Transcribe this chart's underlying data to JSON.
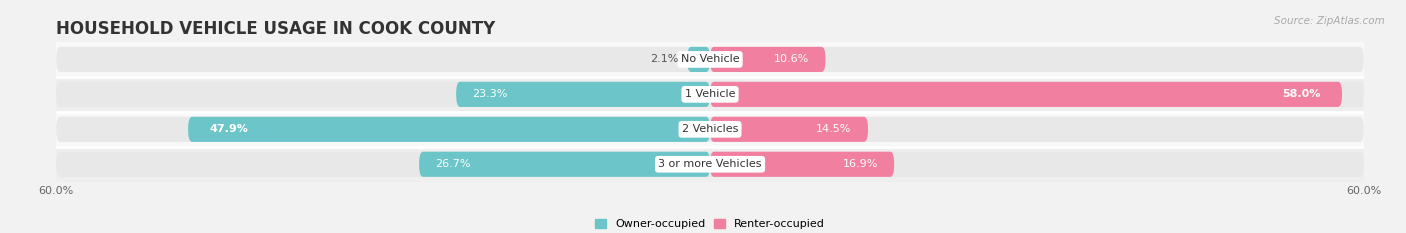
{
  "title": "HOUSEHOLD VEHICLE USAGE IN COOK COUNTY",
  "source": "Source: ZipAtlas.com",
  "categories": [
    "No Vehicle",
    "1 Vehicle",
    "2 Vehicles",
    "3 or more Vehicles"
  ],
  "owner_values": [
    2.1,
    23.3,
    47.9,
    26.7
  ],
  "renter_values": [
    10.6,
    58.0,
    14.5,
    16.9
  ],
  "owner_color": "#6cc5c8",
  "renter_color": "#f07fa0",
  "background_color": "#f2f2f2",
  "bar_bg_color": "#e8e8e8",
  "row_bg_light": "#f8f8f8",
  "row_bg_dark": "#eeeeee",
  "axis_max": 60.0,
  "legend_owner": "Owner-occupied",
  "legend_renter": "Renter-occupied",
  "title_fontsize": 12,
  "label_fontsize": 8,
  "source_fontsize": 7.5,
  "bar_height": 0.72,
  "x_only_ends": true
}
